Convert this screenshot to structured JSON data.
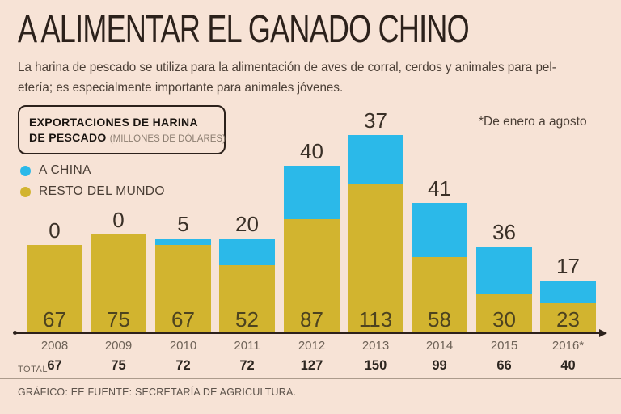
{
  "header": {
    "title": "A ALIMENTAR EL GANADO CHINO",
    "subtitle_line1": "La harina de pescado se utiliza para la alimentación de aves de corral, cerdos y animales para pel-",
    "subtitle_line2": "etería; es especialmente importante para animales jóvenes."
  },
  "chart_box": {
    "title_line1": "EXPORTACIONES DE HARINA",
    "title_line2": "DE PESCADO",
    "units": "(MILLONES DE DÓLARES)"
  },
  "chart_data": {
    "type": "bar",
    "stacked": true,
    "categories": [
      "2008",
      "2009",
      "2010",
      "2011",
      "2012",
      "2013",
      "2014",
      "2015",
      "2016*"
    ],
    "series": [
      {
        "name": "A CHINA",
        "color": "#2bb9e9",
        "values": [
          0,
          0,
          5,
          20,
          40,
          37,
          41,
          36,
          17
        ]
      },
      {
        "name": "RESTO DEL MUNDO",
        "color": "#d2b42f",
        "values": [
          67,
          75,
          67,
          52,
          87,
          113,
          58,
          30,
          23
        ]
      }
    ],
    "totals": {
      "label": "TOTAL",
      "values": [
        67,
        75,
        72,
        72,
        127,
        150,
        99,
        66,
        40
      ]
    },
    "note": "*De enero a agosto",
    "value_labels": "on",
    "legend_position": "top-left",
    "grid": false
  },
  "footer": {
    "credit": "GRÁFICO: EE  FUENTE: SECRETARÍA DE AGRICULTURA."
  },
  "colors": {
    "background": "#f7e3d6",
    "axis": "#2c211b",
    "china": "#2bb9e9",
    "resto": "#d2b42f"
  }
}
